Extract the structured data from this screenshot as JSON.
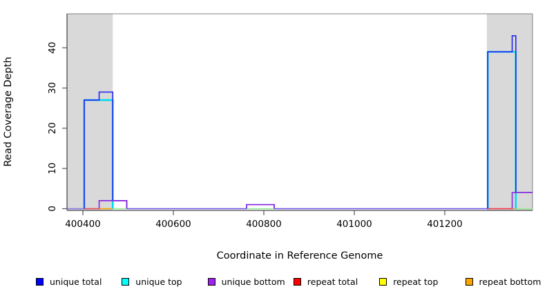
{
  "chart_data": {
    "type": "line",
    "subtype": "step-coverage",
    "title": "",
    "xlabel": "Coordinate in Reference Genome",
    "ylabel": "Read Coverage Depth",
    "xlim": [
      400365,
      401394
    ],
    "ylim": [
      0,
      48.4
    ],
    "x_ticks": [
      400400,
      400600,
      400800,
      401000,
      401200
    ],
    "y_ticks": [
      0,
      10,
      20,
      30,
      40
    ],
    "grid": false,
    "legend_position": "bottom",
    "plot_bg": "#ffffff",
    "repeat_region_color": "#d9d9d9",
    "repeat_regions": [
      [
        400365,
        400466
      ],
      [
        401293,
        401394
      ]
    ],
    "series": [
      {
        "name": "unique total",
        "color": "#2b2bf0",
        "steps": [
          [
            400365,
            0
          ],
          [
            400403,
            27
          ],
          [
            400436,
            29
          ],
          [
            400466,
            2
          ],
          [
            400497,
            0
          ],
          [
            400762,
            1
          ],
          [
            400823,
            0
          ],
          [
            401295,
            39
          ],
          [
            401349,
            43
          ],
          [
            401357,
            4
          ],
          [
            401394,
            4
          ]
        ]
      },
      {
        "name": "unique top",
        "color": "#00dcee",
        "steps": [
          [
            400365,
            0
          ],
          [
            400403,
            27
          ],
          [
            400466,
            0
          ],
          [
            401295,
            39
          ],
          [
            401357,
            0
          ],
          [
            401394,
            0
          ]
        ]
      },
      {
        "name": "unique bottom",
        "color": "#8a2be2",
        "steps": [
          [
            400365,
            0
          ],
          [
            400436,
            2
          ],
          [
            400497,
            0
          ],
          [
            400762,
            1
          ],
          [
            400823,
            0
          ],
          [
            401349,
            4
          ],
          [
            401394,
            4
          ]
        ]
      },
      {
        "name": "repeat total",
        "color": "#ff0000",
        "steps": [
          [
            400365,
            0
          ],
          [
            401394,
            0
          ]
        ]
      },
      {
        "name": "repeat top",
        "color": "#ffff00",
        "steps": [
          [
            400365,
            0
          ],
          [
            401394,
            0
          ]
        ]
      },
      {
        "name": "repeat bottom",
        "color": "#ffa500",
        "steps": [
          [
            400365,
            0
          ],
          [
            401394,
            0
          ]
        ]
      }
    ],
    "baseline_overlap_segments": [
      {
        "x1": 400365,
        "x2": 400403,
        "color": "#8877ee"
      },
      {
        "x1": 400403,
        "x2": 400436,
        "color": "#ee4455"
      },
      {
        "x1": 400436,
        "x2": 400466,
        "color": "#ffa500"
      },
      {
        "x1": 400466,
        "x2": 400497,
        "color": "#90ee90"
      },
      {
        "x1": 400497,
        "x2": 400762,
        "color": "#6a52ec"
      },
      {
        "x1": 400762,
        "x2": 400823,
        "color": "#90ee90"
      },
      {
        "x1": 400823,
        "x2": 401295,
        "color": "#6a52ec"
      },
      {
        "x1": 401295,
        "x2": 401349,
        "color": "#ff3344"
      },
      {
        "x1": 401349,
        "x2": 401357,
        "color": "#ffa500"
      },
      {
        "x1": 401357,
        "x2": 401394,
        "color": "#90ee90"
      }
    ],
    "legend": [
      {
        "label": "unique total",
        "color": "#0000ff"
      },
      {
        "label": "unique top",
        "color": "#00ffff"
      },
      {
        "label": "unique bottom",
        "color": "#a020f0"
      },
      {
        "label": "repeat total",
        "color": "#ff0000"
      },
      {
        "label": "repeat top",
        "color": "#ffff00"
      },
      {
        "label": "repeat bottom",
        "color": "#ffa500"
      }
    ]
  }
}
